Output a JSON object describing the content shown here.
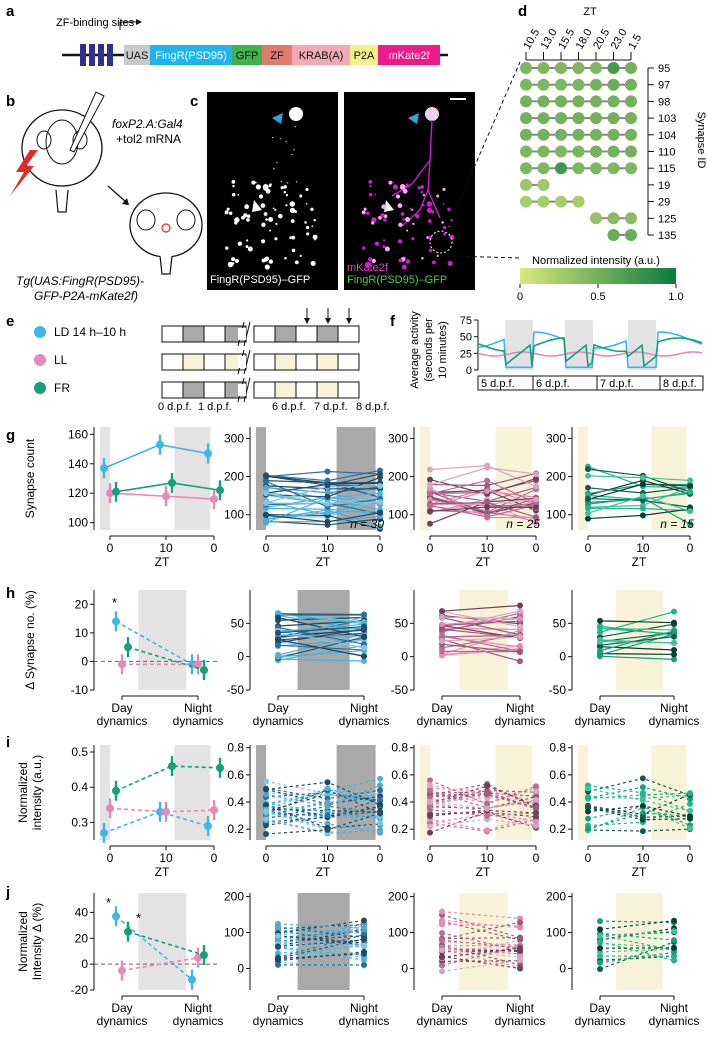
{
  "panels": {
    "a": "a",
    "b": "b",
    "c": "c",
    "d": "d",
    "e": "e",
    "f": "f",
    "g": "g",
    "h": "h",
    "i": "i",
    "j": "j"
  },
  "construct": {
    "site_label": "ZF-binding sites",
    "boxes": [
      {
        "label": "UAS",
        "color": "#c8ccc8"
      },
      {
        "label": "FingR(PSD95)",
        "color": "#1fb5ec"
      },
      {
        "label": "GFP",
        "color": "#3fb24a"
      },
      {
        "label": "ZF",
        "color": "#e07a6e"
      },
      {
        "label": "KRAB(A)",
        "color": "#f2a9b3"
      },
      {
        "label": "P2A",
        "color": "#f3f08a"
      },
      {
        "label": "mKate2f",
        "color": "#ec1a8c"
      }
    ],
    "zf_site_color": "#2e3192"
  },
  "injection": {
    "line1": "foxP2.A:Gal4",
    "line2": "+tol2 mRNA",
    "tg_line1": "Tg(UAS:FingR(PSD95)-",
    "tg_line2": "GFP-P2A-mKate2f)"
  },
  "micro": {
    "left_label": "FingR(PSD95)–GFP",
    "right_label1": "mKate2f",
    "right_label2": "FingR(PSD95)–GFP"
  },
  "heatmap": {
    "title": "ZT",
    "zt": [
      "10.5",
      "13.0",
      "15.5",
      "18.0",
      "20.5",
      "23.0",
      "1.5"
    ],
    "ylabel": "Synapse ID",
    "rows": [
      {
        "id": "95",
        "vals": [
          0.45,
          0.45,
          0.45,
          0.45,
          0.45,
          0.7,
          0.5
        ]
      },
      {
        "id": "97",
        "vals": [
          0.45,
          0.45,
          0.45,
          0.45,
          0.5,
          0.55,
          0.5
        ]
      },
      {
        "id": "98",
        "vals": [
          0.5,
          0.5,
          0.5,
          0.5,
          0.5,
          0.5,
          0.5
        ]
      },
      {
        "id": "103",
        "vals": [
          0.5,
          0.5,
          0.5,
          0.5,
          0.5,
          0.5,
          0.5
        ]
      },
      {
        "id": "104",
        "vals": [
          0.5,
          0.5,
          0.5,
          0.5,
          0.5,
          0.5,
          0.5
        ]
      },
      {
        "id": "110",
        "vals": [
          0.45,
          0.45,
          0.45,
          0.45,
          0.5,
          0.5,
          0.5
        ]
      },
      {
        "id": "115",
        "vals": [
          0.45,
          0.45,
          0.75,
          0.45,
          0.45,
          0.45,
          0.45
        ]
      },
      {
        "id": "19",
        "vals": [
          0.3,
          0.3,
          null,
          null,
          null,
          null,
          null
        ]
      },
      {
        "id": "29",
        "vals": [
          0.25,
          0.25,
          0.25,
          0.25,
          null,
          null,
          null
        ]
      },
      {
        "id": "125",
        "vals": [
          null,
          null,
          null,
          null,
          0.35,
          0.4,
          0.4
        ]
      },
      {
        "id": "135",
        "vals": [
          null,
          null,
          null,
          null,
          null,
          0.55,
          0.55
        ]
      }
    ],
    "cbar_label": "Normalized intensity (a.u.)",
    "cbar_ticks": [
      "0",
      "0.5",
      "1.0"
    ],
    "cbar_low": "#dbe87a",
    "cbar_high": "#0b7a3e"
  },
  "conditions": [
    {
      "label": "LD 14 h–10 h",
      "color": "#3eb6e8"
    },
    {
      "label": "LL",
      "color": "#e58ab6"
    },
    {
      "label": "FR",
      "color": "#13a07a"
    }
  ],
  "schedule_labels": [
    "0 d.p.f.",
    "1 d.p.f.",
    "6 d.p.f.",
    "7 d.p.f.",
    "8 d.p.f."
  ],
  "activity": {
    "ylabel1": "Average activity",
    "ylabel2": "(seconds per",
    "ylabel3": "10 minutes)",
    "yticks": [
      "0",
      "25",
      "50",
      "75"
    ],
    "days": [
      "5 d.p.f.",
      "6 d.p.f.",
      "7 d.p.f.",
      "8 d.p.f."
    ]
  },
  "axes": {
    "zt": "ZT",
    "zt_ticks": [
      "0",
      "10",
      "0"
    ],
    "synapse_count": "Synapse count",
    "delta_syn": "Δ Synapse no. (%)",
    "norm1": "Normalized",
    "norm2": "intensity (a.u.)",
    "normd1": "Normalized",
    "normd2": "Intensity Δ (%)",
    "day1": "Day",
    "day2": "dynamics",
    "night1": "Night",
    "night2": "dynamics",
    "n30": "n = 30",
    "n25": "n = 25",
    "n15": "n = 15",
    "star": "*"
  },
  "chart_data": [
    {
      "type": "line",
      "title": "",
      "xlabel": "ZT",
      "ylabel": "Synapse count",
      "categories": [
        "0",
        "10",
        "0"
      ],
      "ylim": [
        95,
        165
      ],
      "series": [
        {
          "name": "LD 14 h–10 h",
          "values": [
            137,
            153,
            147
          ]
        },
        {
          "name": "LL",
          "values": [
            120,
            118,
            116
          ]
        },
        {
          "name": "FR",
          "values": [
            121,
            127,
            122
          ]
        }
      ]
    },
    {
      "type": "line",
      "title": "",
      "xlabel": "",
      "ylabel": "Δ Synapse no. (%)",
      "categories": [
        "Day dynamics",
        "Night dynamics"
      ],
      "ylim": [
        -10,
        25
      ],
      "series": [
        {
          "name": "LD 14 h–10 h",
          "values": [
            14,
            -1
          ]
        },
        {
          "name": "LL",
          "values": [
            -1,
            -1
          ]
        },
        {
          "name": "FR",
          "values": [
            5,
            -3
          ]
        }
      ]
    },
    {
      "type": "line",
      "title": "",
      "xlabel": "ZT",
      "ylabel": "Normalized intensity (a.u.)",
      "categories": [
        "0",
        "10",
        "0"
      ],
      "ylim": [
        0.25,
        0.52
      ],
      "series": [
        {
          "name": "LD 14 h–10 h",
          "values": [
            0.27,
            0.33,
            0.29
          ]
        },
        {
          "name": "LL",
          "values": [
            0.34,
            0.33,
            0.335
          ]
        },
        {
          "name": "FR",
          "values": [
            0.39,
            0.46,
            0.455
          ]
        }
      ]
    },
    {
      "type": "line",
      "title": "",
      "xlabel": "",
      "ylabel": "Normalized Intensity Δ (%)",
      "categories": [
        "Day dynamics",
        "Night dynamics"
      ],
      "ylim": [
        -20,
        55
      ],
      "series": [
        {
          "name": "LD 14 h–10 h",
          "values": [
            37,
            -12
          ]
        },
        {
          "name": "LL",
          "values": [
            -5,
            5
          ]
        },
        {
          "name": "FR",
          "values": [
            25,
            7
          ]
        }
      ]
    }
  ],
  "colors": {
    "ld": "#3eb6e8",
    "ll": "#e58ab6",
    "fr": "#13a07a",
    "dark_shade": "#a9a9a9",
    "light_shade": "#e3e3e3",
    "ll_shade": "#f8f3d8"
  }
}
